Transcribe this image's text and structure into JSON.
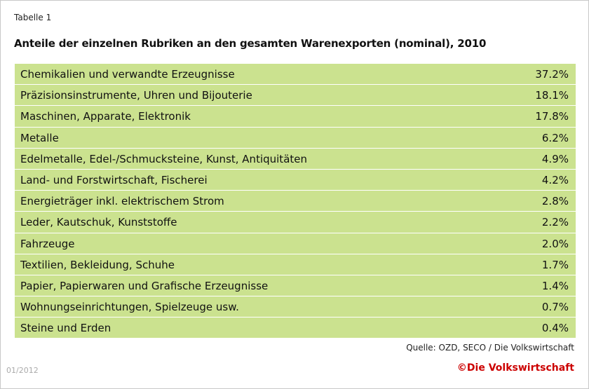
{
  "header": {
    "label": "Tabelle 1",
    "title": "Anteile der einzelnen Rubriken an den gesamten Warenexporten (nominal), 2010"
  },
  "table": {
    "rows": [
      [
        "Chemikalien und verwandte Erzeugnisse",
        "37.2%"
      ],
      [
        "Präzisionsinstrumente, Uhren und Bijouterie",
        "18.1%"
      ],
      [
        "Maschinen, Apparate, Elektronik",
        "17.8%"
      ],
      [
        "Metalle",
        "6.2%"
      ],
      [
        "Edelmetalle, Edel-/Schmucksteine, Kunst, Antiquitäten",
        "4.9%"
      ],
      [
        "Land- und Forstwirtschaft, Fischerei",
        "4.2%"
      ],
      [
        "Energieträger inkl. elektrischem Strom",
        "2.8%"
      ],
      [
        "Leder, Kautschuk, Kunststoffe",
        "2.2%"
      ],
      [
        "Fahrzeuge",
        "2.0%"
      ],
      [
        "Textilien, Bekleidung, Schuhe",
        "1.7%"
      ],
      [
        "Papier, Papierwaren und Grafische Erzeugnisse",
        "1.4%"
      ],
      [
        "Wohnungseinrichtungen, Spielzeuge usw.",
        "0.7%"
      ],
      [
        "Steine und Erden",
        "0.4%"
      ]
    ]
  },
  "footer": {
    "source": "Quelle: OZD, SECO / Die Volkswirtschaft",
    "date": "01/2012",
    "copyright": "©Die Volkswirtschaft"
  }
}
